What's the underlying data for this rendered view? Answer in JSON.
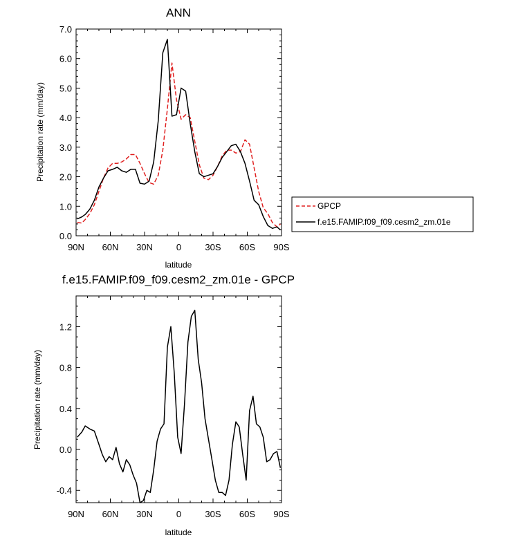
{
  "chart_data": [
    {
      "type": "line",
      "title": "ANN",
      "xlabel": "latitude",
      "ylabel": "Precipitation rate (mm/day)",
      "xlim": [
        90,
        -90
      ],
      "ylim": [
        0,
        7
      ],
      "x_ticks": [
        90,
        60,
        30,
        0,
        -30,
        -60,
        -90
      ],
      "x_tick_labels": [
        "90N",
        "60N",
        "30N",
        "0",
        "30S",
        "60S",
        "90S"
      ],
      "y_ticks": [
        0,
        1,
        2,
        3,
        4,
        5,
        6,
        7
      ],
      "y_tick_labels": [
        "0.0",
        "1.0",
        "2.0",
        "3.0",
        "4.0",
        "5.0",
        "6.0",
        "7.0"
      ],
      "legend_position": "right",
      "series": [
        {
          "name": "GPCP",
          "color": "#e02020",
          "dash": "dashed",
          "x": [
            89,
            85,
            82,
            78,
            74,
            70,
            66,
            62,
            58,
            54,
            50,
            46,
            42,
            38,
            34,
            30,
            26,
            22,
            18,
            14,
            10,
            6,
            2,
            -2,
            -6,
            -10,
            -14,
            -18,
            -22,
            -26,
            -30,
            -34,
            -38,
            -42,
            -46,
            -50,
            -54,
            -58,
            -62,
            -66,
            -70,
            -74,
            -78,
            -82,
            -86,
            -89
          ],
          "y": [
            0.45,
            0.43,
            0.55,
            0.75,
            1.05,
            1.5,
            1.95,
            2.3,
            2.45,
            2.45,
            2.5,
            2.6,
            2.75,
            2.75,
            2.45,
            2.1,
            1.8,
            1.75,
            2.05,
            2.9,
            4.3,
            5.85,
            4.6,
            3.95,
            4.1,
            4.0,
            3.2,
            2.4,
            1.95,
            1.9,
            2.05,
            2.35,
            2.7,
            2.9,
            2.9,
            2.8,
            2.85,
            3.25,
            3.1,
            2.3,
            1.5,
            0.95,
            0.75,
            0.45,
            0.3,
            0.4
          ]
        },
        {
          "name": "f.e15.FAMIP.f09_f09.cesm2_zm.01e",
          "color": "#000000",
          "dash": "solid",
          "x": [
            89,
            85,
            82,
            78,
            74,
            70,
            66,
            62,
            58,
            54,
            50,
            46,
            42,
            38,
            34,
            30,
            26,
            22,
            18,
            14,
            10,
            6,
            2,
            -2,
            -6,
            -10,
            -14,
            -18,
            -22,
            -26,
            -30,
            -34,
            -38,
            -42,
            -46,
            -50,
            -54,
            -58,
            -62,
            -66,
            -70,
            -74,
            -78,
            -82,
            -86,
            -89
          ],
          "y": [
            0.57,
            0.64,
            0.72,
            0.9,
            1.2,
            1.65,
            1.95,
            2.2,
            2.25,
            2.32,
            2.2,
            2.15,
            2.25,
            2.25,
            1.78,
            1.75,
            1.85,
            2.5,
            3.9,
            6.2,
            6.65,
            4.05,
            4.1,
            5.0,
            4.9,
            3.8,
            2.85,
            2.1,
            2.0,
            2.05,
            2.1,
            2.35,
            2.65,
            2.85,
            3.05,
            3.1,
            2.85,
            2.45,
            1.85,
            1.2,
            1.05,
            0.65,
            0.35,
            0.25,
            0.3,
            0.2
          ]
        }
      ]
    },
    {
      "type": "line",
      "title": "f.e15.FAMIP.f09_f09.cesm2_zm.01e - GPCP",
      "xlabel": "latitude",
      "ylabel": "Precipitation rate (mm/day)",
      "xlim": [
        90,
        -90
      ],
      "ylim": [
        -0.52,
        1.5
      ],
      "x_ticks": [
        90,
        60,
        30,
        0,
        -30,
        -60,
        -90
      ],
      "x_tick_labels": [
        "90N",
        "60N",
        "30N",
        "0",
        "30S",
        "60S",
        "90S"
      ],
      "y_ticks": [
        -0.4,
        0.0,
        0.4,
        0.8,
        1.2
      ],
      "y_tick_labels": [
        "-0.4",
        "0.0",
        "0.4",
        "0.8",
        "1.2"
      ],
      "series": [
        {
          "color": "#000000",
          "dash": "solid",
          "x": [
            89,
            85,
            82,
            78,
            74,
            70,
            67,
            64,
            61,
            58,
            55,
            52,
            49,
            46,
            43,
            40,
            37,
            34,
            31,
            28,
            25,
            22,
            19,
            16,
            13,
            10,
            7,
            4,
            1,
            -2,
            -5,
            -8,
            -11,
            -14,
            -17,
            -20,
            -23,
            -26,
            -29,
            -32,
            -35,
            -38,
            -41,
            -44,
            -47,
            -50,
            -53,
            -56,
            -59,
            -62,
            -65,
            -68,
            -71,
            -74,
            -77,
            -80,
            -83,
            -86,
            -89
          ],
          "y": [
            0.12,
            0.17,
            0.23,
            0.2,
            0.18,
            0.05,
            -0.05,
            -0.12,
            -0.07,
            -0.1,
            0.02,
            -0.14,
            -0.22,
            -0.1,
            -0.15,
            -0.25,
            -0.33,
            -0.52,
            -0.5,
            -0.4,
            -0.42,
            -0.2,
            0.08,
            0.2,
            0.25,
            1.0,
            1.2,
            0.75,
            0.12,
            -0.04,
            0.45,
            1.05,
            1.3,
            1.36,
            0.88,
            0.65,
            0.3,
            0.1,
            -0.1,
            -0.3,
            -0.42,
            -0.42,
            -0.45,
            -0.3,
            0.05,
            0.27,
            0.22,
            -0.05,
            -0.3,
            0.38,
            0.52,
            0.25,
            0.22,
            0.12,
            -0.12,
            -0.1,
            -0.04,
            -0.02,
            -0.18
          ]
        }
      ]
    }
  ]
}
